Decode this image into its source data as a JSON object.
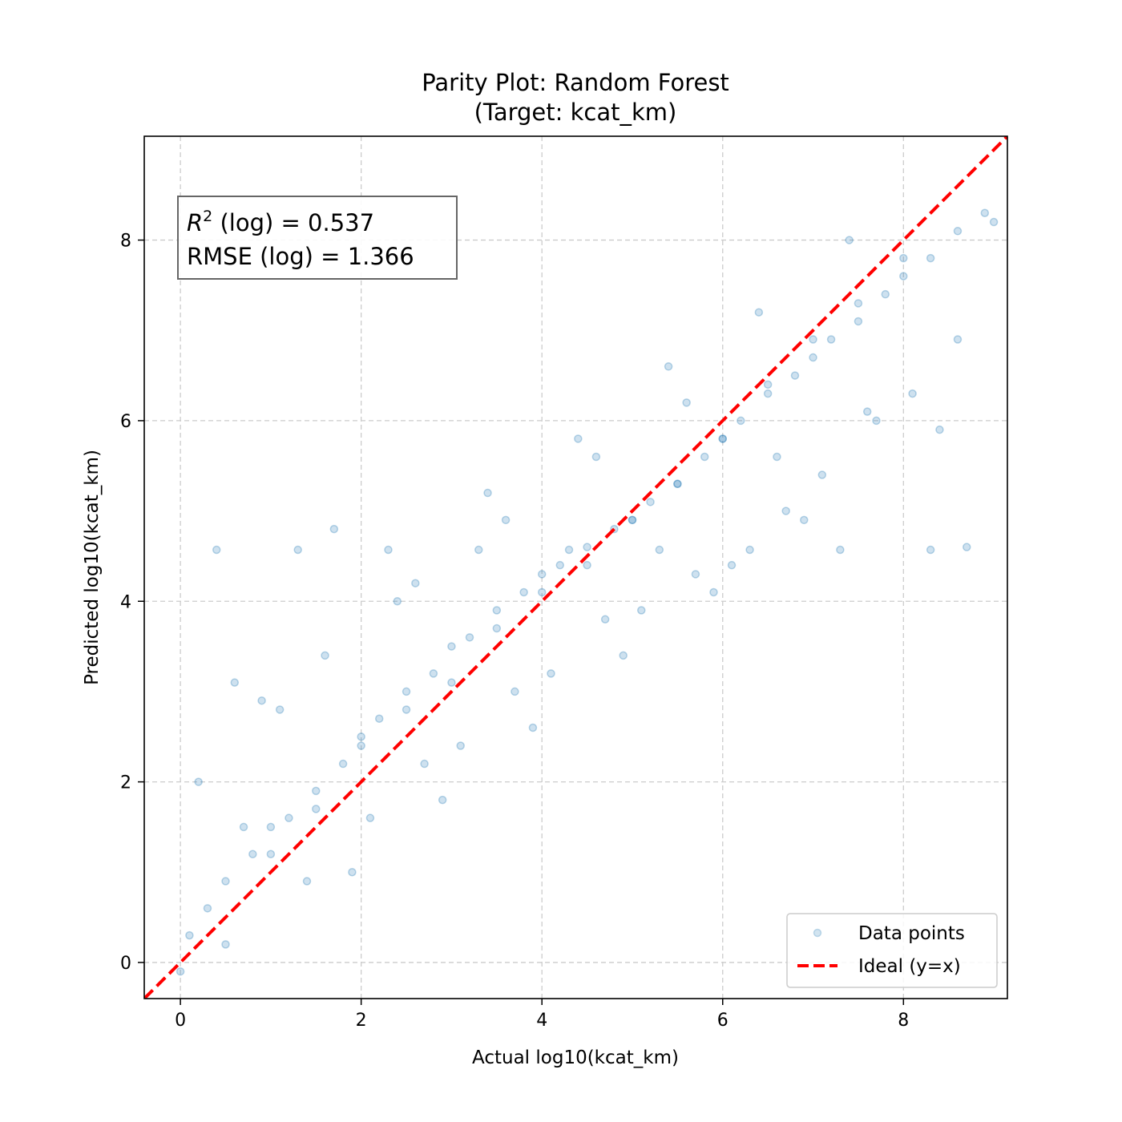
{
  "chart_data": {
    "type": "scatter",
    "title": "Parity Plot: Random Forest",
    "subtitle": "(Target: kcat_km)",
    "xlabel": "Actual log10(kcat_km)",
    "ylabel": "Predicted log10(kcat_km)",
    "xlim": [
      -0.4,
      9.15
    ],
    "ylim": [
      -0.4,
      9.15
    ],
    "xticks": [
      0,
      2,
      4,
      6,
      8
    ],
    "yticks": [
      0,
      2,
      4,
      6,
      8
    ],
    "grid": true,
    "legend_position": "lower-right",
    "stats": {
      "r2_label": "(log) = 0.537",
      "rmse_label": "RMSE (log) = 1.366"
    },
    "colors": {
      "points": "#1f77b4",
      "ideal_line": "#ff0000",
      "grid": "#cccccc"
    },
    "series": [
      {
        "name": "Data points",
        "kind": "scatter",
        "x": [
          0.1,
          0.3,
          0.5,
          0.8,
          1.0,
          1.2,
          1.5,
          1.8,
          2.0,
          2.2,
          2.5,
          2.8,
          3.0,
          3.2,
          3.5,
          3.8,
          4.0,
          4.2,
          4.5,
          4.8,
          5.0,
          5.2,
          5.5,
          5.8,
          6.0,
          6.2,
          6.5,
          6.8,
          7.0,
          7.2,
          7.5,
          7.8,
          8.0,
          8.3,
          8.6,
          8.9,
          0.2,
          0.6,
          1.1,
          1.6,
          2.1,
          2.6,
          3.1,
          3.6,
          4.1,
          4.6,
          5.1,
          5.6,
          6.1,
          6.6,
          7.1,
          7.6,
          8.1,
          8.6,
          0.4,
          1.3,
          2.3,
          3.3,
          4.3,
          5.3,
          6.3,
          7.3,
          8.3,
          1.9,
          2.9,
          3.9,
          4.9,
          5.9,
          6.9,
          0.0,
          0.9,
          1.4,
          2.4,
          3.4,
          4.4,
          5.4,
          6.4,
          7.4,
          8.4,
          3.7,
          4.7,
          5.7,
          2.7,
          6.7,
          1.7,
          7.7,
          0.7,
          8.7,
          3.0,
          4.0,
          5.0,
          6.0,
          2.0,
          7.0,
          1.0,
          8.0,
          0.5,
          9.0,
          4.5,
          3.5,
          5.5,
          2.5,
          6.5,
          1.5,
          7.5
        ],
        "y": [
          0.3,
          0.6,
          0.9,
          1.2,
          1.5,
          1.6,
          1.9,
          2.2,
          2.5,
          2.7,
          3.0,
          3.2,
          3.5,
          3.6,
          3.9,
          4.1,
          4.3,
          4.4,
          4.6,
          4.8,
          4.9,
          5.1,
          5.3,
          5.6,
          5.8,
          6.0,
          6.3,
          6.5,
          6.7,
          6.9,
          7.1,
          7.4,
          7.6,
          7.8,
          8.1,
          8.3,
          2.0,
          3.1,
          2.8,
          3.4,
          1.6,
          4.2,
          2.4,
          4.9,
          3.2,
          5.6,
          3.9,
          6.2,
          4.4,
          5.6,
          5.4,
          6.1,
          6.3,
          6.9,
          4.57,
          4.57,
          4.57,
          4.57,
          4.57,
          4.57,
          4.57,
          4.57,
          4.57,
          1.0,
          1.8,
          2.6,
          3.4,
          4.1,
          4.9,
          -0.1,
          2.9,
          0.9,
          4.0,
          5.2,
          5.8,
          6.6,
          7.2,
          8.0,
          5.9,
          3.0,
          3.8,
          4.3,
          2.2,
          5.0,
          4.8,
          6.0,
          1.5,
          4.6,
          3.1,
          4.1,
          4.9,
          5.8,
          2.4,
          6.9,
          1.2,
          7.8,
          0.2,
          8.2,
          4.4,
          3.7,
          5.3,
          2.8,
          6.4,
          1.7,
          7.3
        ]
      },
      {
        "name": "Ideal (y=x)",
        "kind": "line",
        "x": [
          -0.4,
          9.15
        ],
        "y": [
          -0.4,
          9.15
        ]
      }
    ]
  }
}
